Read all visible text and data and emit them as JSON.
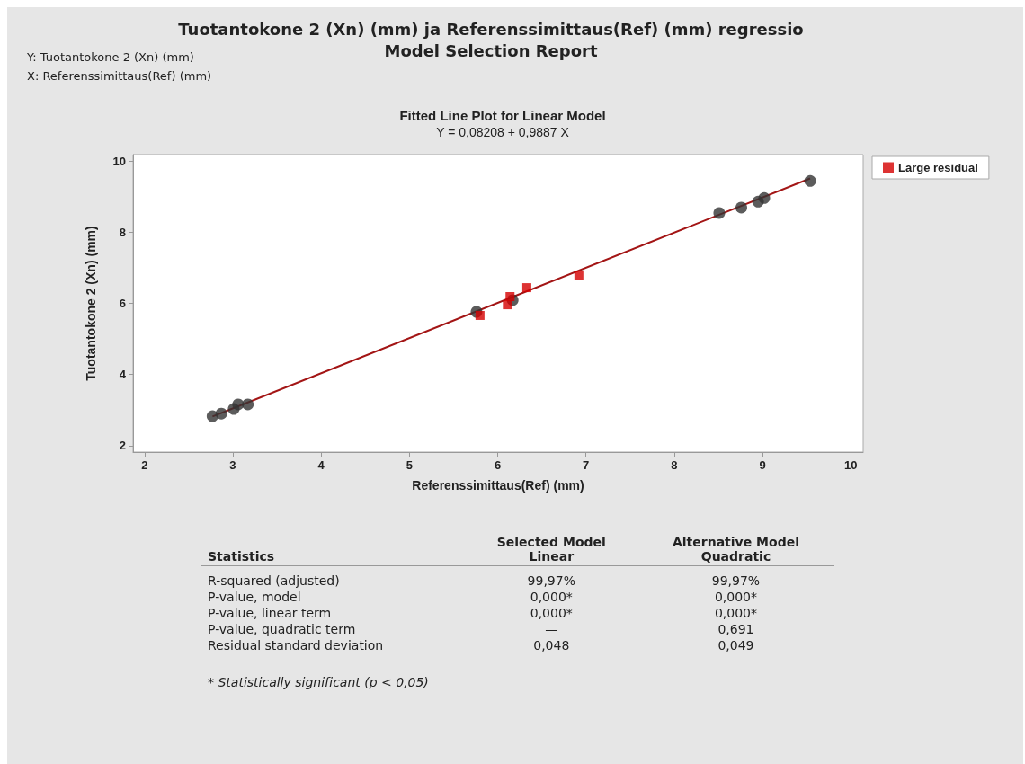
{
  "chart_data": [
    {
      "type": "other",
      "title": "Tuotantokone 2 (Xn) (mm) ja Referenssimittaus(Ref) (mm) regressio",
      "subtitle": "Model Selection Report",
      "annotations": [
        "Y: Tuotantokone 2 (Xn) (mm)",
        "X: Referenssimittaus(Ref) (mm)"
      ]
    },
    {
      "type": "scatter",
      "title": "Fitted Line Plot for Linear Model",
      "subtitle": "Y = 0,08208 + 0,9887 X",
      "xlabel": "Referenssimittaus(Ref) (mm)",
      "ylabel": "Tuotantokone 2 (Xn) (mm)",
      "xlim": [
        1.87,
        10.14
      ],
      "ylim": [
        1.82,
        10.18
      ],
      "xticks": [
        2,
        3,
        4,
        5,
        6,
        7,
        8,
        9,
        10
      ],
      "yticks": [
        2,
        4,
        6,
        8,
        10
      ],
      "grid": false,
      "legend": "right",
      "series": [
        {
          "type": "line",
          "color": "#a31515",
          "marker": "none",
          "x": [
            2.77,
            9.54
          ],
          "values": [
            2.82,
            9.51
          ]
        },
        {
          "color": "#333333",
          "marker": "circle",
          "x": [
            2.77,
            2.87,
            3.01,
            3.06,
            3.17,
            5.76,
            6.17,
            8.51,
            8.76,
            8.95,
            9.02,
            9.54
          ],
          "values": [
            2.83,
            2.9,
            3.03,
            3.16,
            3.16,
            5.76,
            6.09,
            8.54,
            8.69,
            8.86,
            8.96,
            9.44
          ]
        },
        {
          "name": "Large residual",
          "color": "#d40000",
          "marker": "square",
          "x": [
            5.8,
            6.11,
            6.14,
            6.33,
            6.92
          ],
          "values": [
            5.66,
            5.96,
            6.19,
            6.44,
            6.77
          ]
        }
      ]
    },
    {
      "type": "other",
      "categories": [
        "Statistics",
        "Selected Model\nLinear",
        "Alternative Model\nQuadratic"
      ],
      "y_categories": [
        "R-squared (adjusted)",
        "P-value, model",
        "P-value, linear term",
        "P-value, quadratic term",
        "Residual standard deviation"
      ],
      "cell_labels": [
        [
          "99,97%",
          "99,97%"
        ],
        [
          "0,000*",
          "0,000*"
        ],
        [
          "0,000*",
          "0,000*"
        ],
        [
          "—",
          "0,691"
        ],
        [
          "0,048",
          "0,049"
        ]
      ],
      "annotations": [
        "* Statistically significant (p < 0,05)"
      ]
    }
  ]
}
